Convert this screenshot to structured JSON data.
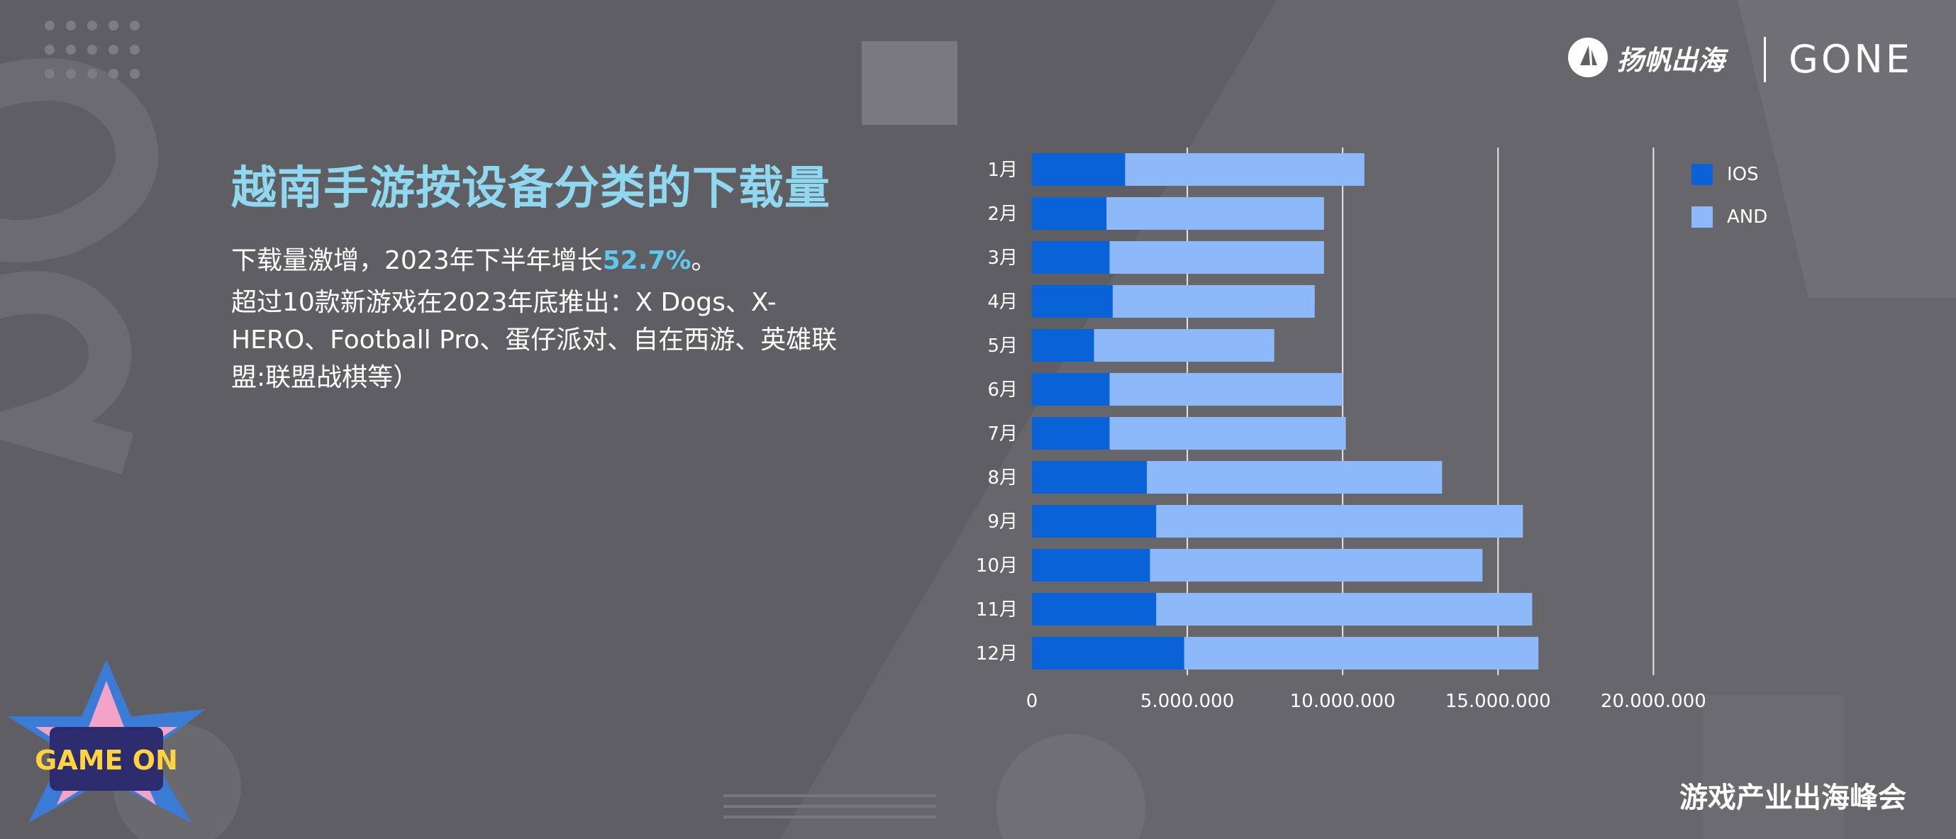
{
  "brand": {
    "yangfan": "扬帆出海",
    "zone": "GONE",
    "summit": "游戏产业出海峰会",
    "badge_text": "GAME ON"
  },
  "headline": {
    "title": "越南手游按设备分类的下载量"
  },
  "body": {
    "line1_prefix": "下载量激增，2023年下半年增长",
    "line1_highlight": "52.7%",
    "line1_suffix": "。",
    "paragraph": "超过10款新游戏在2023年底推出：X Dogs、X-HERO、Football Pro、蛋仔派对、自在西游、英雄联盟:联盟战棋等）"
  },
  "colors": {
    "ios": "#0a62d8",
    "and": "#8db8fa",
    "title": "#8fd8f0",
    "highlight": "#5fc8f0"
  },
  "chart_data": {
    "type": "bar",
    "orientation": "horizontal",
    "stacked": true,
    "categories": [
      "1月",
      "2月",
      "3月",
      "4月",
      "5月",
      "6月",
      "7月",
      "8月",
      "9月",
      "10月",
      "11月",
      "12月"
    ],
    "series": [
      {
        "name": "IOS",
        "values": [
          3000000,
          2400000,
          2500000,
          2600000,
          2000000,
          2500000,
          2500000,
          3700000,
          4000000,
          3800000,
          4000000,
          4900000
        ]
      },
      {
        "name": "AND",
        "values": [
          7700000,
          7000000,
          6900000,
          6500000,
          5800000,
          7500000,
          7600000,
          9500000,
          11800000,
          10700000,
          12100000,
          11400000
        ]
      }
    ],
    "xlim": [
      0,
      22000000
    ],
    "xticks": [
      0,
      5000000,
      10000000,
      15000000,
      20000000
    ],
    "xtick_labels": [
      "0",
      "5.000.000",
      "10.000.000",
      "15.000.000",
      "20.000.000"
    ],
    "grid": "vertical",
    "legend_position": "right"
  }
}
